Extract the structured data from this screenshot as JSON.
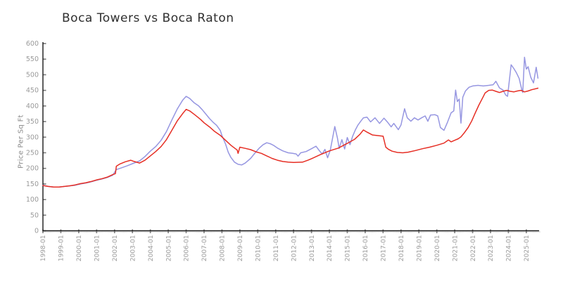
{
  "title": "Boca Towers vs Boca Raton",
  "style": {
    "background": "#ffffff",
    "title_color": "#2f2f2f",
    "axis_color": "#1a1a1a",
    "tick_label_color": "#9a9a9a",
    "major_tick_color": "#777777",
    "minor_tick_color": "#c9c9c9",
    "blue_series_color": "#9696e1",
    "red_series_color": "#e62e24"
  },
  "chart_data": {
    "type": "line",
    "title": "Boca Towers vs Boca Raton",
    "xlabel": "",
    "ylabel": "Price Per Sq Ft",
    "x_unit": "decimal_year",
    "xlim": [
      1998.0,
      2025.75
    ],
    "ylim": [
      0,
      600
    ],
    "grid": false,
    "legend": "none",
    "y_tick_step": 50,
    "y_tick_labels": [
      "0",
      "50",
      "100",
      "150",
      "200",
      "250",
      "300",
      "350",
      "400",
      "450",
      "500",
      "550",
      "600"
    ],
    "x_tick_start_year": 1998,
    "x_tick_labels": [
      "1998-01",
      "1999-01",
      "2000-01",
      "2001-01",
      "2002-01",
      "2003-01",
      "2004-01",
      "2005-01",
      "2006-01",
      "2007-01",
      "2008-01",
      "2009-01",
      "2010-01",
      "2011-01",
      "2012-01",
      "2013-01",
      "2014-01",
      "2015-01",
      "2016-01",
      "2017-01",
      "2018-01",
      "2019-01",
      "2020-01",
      "2021-01",
      "2022-01",
      "2023-01",
      "2024-01",
      "2025-01"
    ],
    "minor_ticks": "monthly",
    "series": [
      {
        "name": "Boca Towers",
        "color": "#9696e1",
        "points": [
          [
            1998.0,
            146
          ],
          [
            1998.3,
            142
          ],
          [
            1998.6,
            140
          ],
          [
            1998.9,
            140
          ],
          [
            1999.2,
            142
          ],
          [
            1999.5,
            144
          ],
          [
            1999.8,
            146
          ],
          [
            2000.1,
            150
          ],
          [
            2000.4,
            153
          ],
          [
            2000.7,
            157
          ],
          [
            2001.0,
            162
          ],
          [
            2001.3,
            166
          ],
          [
            2001.6,
            171
          ],
          [
            2001.9,
            178
          ],
          [
            2002.1,
            196
          ],
          [
            2002.4,
            202
          ],
          [
            2002.7,
            208
          ],
          [
            2003.0,
            215
          ],
          [
            2003.4,
            224
          ],
          [
            2003.7,
            238
          ],
          [
            2004.0,
            255
          ],
          [
            2004.3,
            270
          ],
          [
            2004.6,
            290
          ],
          [
            2004.9,
            318
          ],
          [
            2005.2,
            355
          ],
          [
            2005.5,
            390
          ],
          [
            2005.8,
            418
          ],
          [
            2006.0,
            431
          ],
          [
            2006.2,
            424
          ],
          [
            2006.45,
            410
          ],
          [
            2006.7,
            400
          ],
          [
            2006.9,
            388
          ],
          [
            2007.1,
            374
          ],
          [
            2007.3,
            360
          ],
          [
            2007.5,
            348
          ],
          [
            2007.7,
            338
          ],
          [
            2007.9,
            322
          ],
          [
            2008.0,
            305
          ],
          [
            2008.2,
            278
          ],
          [
            2008.35,
            252
          ],
          [
            2008.5,
            235
          ],
          [
            2008.7,
            220
          ],
          [
            2008.9,
            213
          ],
          [
            2009.1,
            211
          ],
          [
            2009.3,
            217
          ],
          [
            2009.6,
            232
          ],
          [
            2009.9,
            253
          ],
          [
            2010.1,
            266
          ],
          [
            2010.3,
            276
          ],
          [
            2010.5,
            282
          ],
          [
            2010.7,
            279
          ],
          [
            2010.9,
            273
          ],
          [
            2011.1,
            265
          ],
          [
            2011.4,
            256
          ],
          [
            2011.7,
            250
          ],
          [
            2011.95,
            248
          ],
          [
            2012.15,
            246
          ],
          [
            2012.25,
            239
          ],
          [
            2012.4,
            250
          ],
          [
            2012.7,
            254
          ],
          [
            2013.0,
            263
          ],
          [
            2013.25,
            271
          ],
          [
            2013.45,
            256
          ],
          [
            2013.6,
            246
          ],
          [
            2013.75,
            261
          ],
          [
            2013.9,
            234
          ],
          [
            2014.05,
            258
          ],
          [
            2014.3,
            334
          ],
          [
            2014.45,
            297
          ],
          [
            2014.55,
            264
          ],
          [
            2014.7,
            292
          ],
          [
            2014.85,
            262
          ],
          [
            2015.0,
            299
          ],
          [
            2015.15,
            276
          ],
          [
            2015.3,
            303
          ],
          [
            2015.45,
            323
          ],
          [
            2015.6,
            339
          ],
          [
            2015.75,
            351
          ],
          [
            2015.9,
            362
          ],
          [
            2016.1,
            364
          ],
          [
            2016.3,
            349
          ],
          [
            2016.55,
            362
          ],
          [
            2016.8,
            344
          ],
          [
            2017.05,
            361
          ],
          [
            2017.25,
            348
          ],
          [
            2017.45,
            333
          ],
          [
            2017.6,
            344
          ],
          [
            2017.85,
            324
          ],
          [
            2018.0,
            339
          ],
          [
            2018.2,
            391
          ],
          [
            2018.35,
            362
          ],
          [
            2018.55,
            351
          ],
          [
            2018.75,
            362
          ],
          [
            2018.95,
            355
          ],
          [
            2019.15,
            362
          ],
          [
            2019.35,
            368
          ],
          [
            2019.5,
            351
          ],
          [
            2019.65,
            371
          ],
          [
            2019.9,
            372
          ],
          [
            2020.05,
            368
          ],
          [
            2020.2,
            331
          ],
          [
            2020.4,
            322
          ],
          [
            2020.6,
            348
          ],
          [
            2020.8,
            378
          ],
          [
            2020.95,
            384
          ],
          [
            2021.05,
            451
          ],
          [
            2021.15,
            414
          ],
          [
            2021.25,
            422
          ],
          [
            2021.35,
            345
          ],
          [
            2021.45,
            428
          ],
          [
            2021.6,
            448
          ],
          [
            2021.8,
            460
          ],
          [
            2022.0,
            464
          ],
          [
            2022.3,
            466
          ],
          [
            2022.6,
            464
          ],
          [
            2022.9,
            466
          ],
          [
            2023.15,
            468
          ],
          [
            2023.3,
            479
          ],
          [
            2023.5,
            458
          ],
          [
            2023.7,
            451
          ],
          [
            2023.85,
            435
          ],
          [
            2023.95,
            431
          ],
          [
            2024.15,
            532
          ],
          [
            2024.3,
            520
          ],
          [
            2024.45,
            506
          ],
          [
            2024.6,
            488
          ],
          [
            2024.72,
            458
          ],
          [
            2024.8,
            443
          ],
          [
            2024.9,
            556
          ],
          [
            2025.0,
            518
          ],
          [
            2025.1,
            526
          ],
          [
            2025.25,
            492
          ],
          [
            2025.4,
            474
          ],
          [
            2025.55,
            524
          ],
          [
            2025.65,
            489
          ]
        ]
      },
      {
        "name": "Boca Raton",
        "color": "#e62e24",
        "points": [
          [
            1998.0,
            145
          ],
          [
            1998.3,
            142
          ],
          [
            1998.6,
            140
          ],
          [
            1998.9,
            140
          ],
          [
            1999.2,
            142
          ],
          [
            1999.5,
            144
          ],
          [
            1999.8,
            147
          ],
          [
            2000.1,
            151
          ],
          [
            2000.4,
            154
          ],
          [
            2000.7,
            158
          ],
          [
            2001.0,
            163
          ],
          [
            2001.3,
            167
          ],
          [
            2001.6,
            172
          ],
          [
            2001.9,
            180
          ],
          [
            2002.05,
            183
          ],
          [
            2002.1,
            207
          ],
          [
            2002.3,
            214
          ],
          [
            2002.6,
            221
          ],
          [
            2002.9,
            226
          ],
          [
            2003.1,
            222
          ],
          [
            2003.4,
            217
          ],
          [
            2003.7,
            226
          ],
          [
            2004.0,
            240
          ],
          [
            2004.3,
            254
          ],
          [
            2004.6,
            270
          ],
          [
            2004.9,
            292
          ],
          [
            2005.2,
            322
          ],
          [
            2005.5,
            352
          ],
          [
            2005.8,
            375
          ],
          [
            2006.0,
            389
          ],
          [
            2006.2,
            384
          ],
          [
            2006.5,
            371
          ],
          [
            2006.8,
            357
          ],
          [
            2007.0,
            346
          ],
          [
            2007.3,
            333
          ],
          [
            2007.6,
            318
          ],
          [
            2007.9,
            306
          ],
          [
            2008.2,
            290
          ],
          [
            2008.5,
            274
          ],
          [
            2008.75,
            263
          ],
          [
            2008.85,
            259
          ],
          [
            2008.9,
            248
          ],
          [
            2009.0,
            268
          ],
          [
            2009.3,
            264
          ],
          [
            2009.6,
            260
          ],
          [
            2009.9,
            253
          ],
          [
            2010.2,
            248
          ],
          [
            2010.5,
            240
          ],
          [
            2010.8,
            232
          ],
          [
            2011.1,
            226
          ],
          [
            2011.4,
            222
          ],
          [
            2011.7,
            220
          ],
          [
            2012.0,
            219
          ],
          [
            2012.5,
            220
          ],
          [
            2012.8,
            226
          ],
          [
            2013.0,
            231
          ],
          [
            2013.5,
            244
          ],
          [
            2014.0,
            256
          ],
          [
            2014.5,
            265
          ],
          [
            2015.0,
            280
          ],
          [
            2015.4,
            293
          ],
          [
            2015.7,
            309
          ],
          [
            2015.9,
            323
          ],
          [
            2016.1,
            316
          ],
          [
            2016.4,
            307
          ],
          [
            2016.7,
            305
          ],
          [
            2017.0,
            303
          ],
          [
            2017.15,
            268
          ],
          [
            2017.3,
            261
          ],
          [
            2017.5,
            255
          ],
          [
            2017.8,
            251
          ],
          [
            2018.1,
            250
          ],
          [
            2018.4,
            252
          ],
          [
            2018.8,
            257
          ],
          [
            2019.2,
            263
          ],
          [
            2019.6,
            268
          ],
          [
            2020.0,
            274
          ],
          [
            2020.4,
            281
          ],
          [
            2020.65,
            291
          ],
          [
            2020.8,
            285
          ],
          [
            2021.0,
            290
          ],
          [
            2021.2,
            295
          ],
          [
            2021.35,
            301
          ],
          [
            2021.55,
            315
          ],
          [
            2021.75,
            331
          ],
          [
            2021.95,
            352
          ],
          [
            2022.15,
            378
          ],
          [
            2022.35,
            403
          ],
          [
            2022.55,
            425
          ],
          [
            2022.7,
            442
          ],
          [
            2022.9,
            450
          ],
          [
            2023.1,
            451
          ],
          [
            2023.3,
            447
          ],
          [
            2023.5,
            443
          ],
          [
            2023.7,
            447
          ],
          [
            2023.9,
            450
          ],
          [
            2024.1,
            447
          ],
          [
            2024.3,
            445
          ],
          [
            2024.5,
            448
          ],
          [
            2024.7,
            450
          ],
          [
            2024.9,
            445
          ],
          [
            2025.1,
            448
          ],
          [
            2025.3,
            452
          ],
          [
            2025.65,
            457
          ]
        ]
      }
    ]
  }
}
